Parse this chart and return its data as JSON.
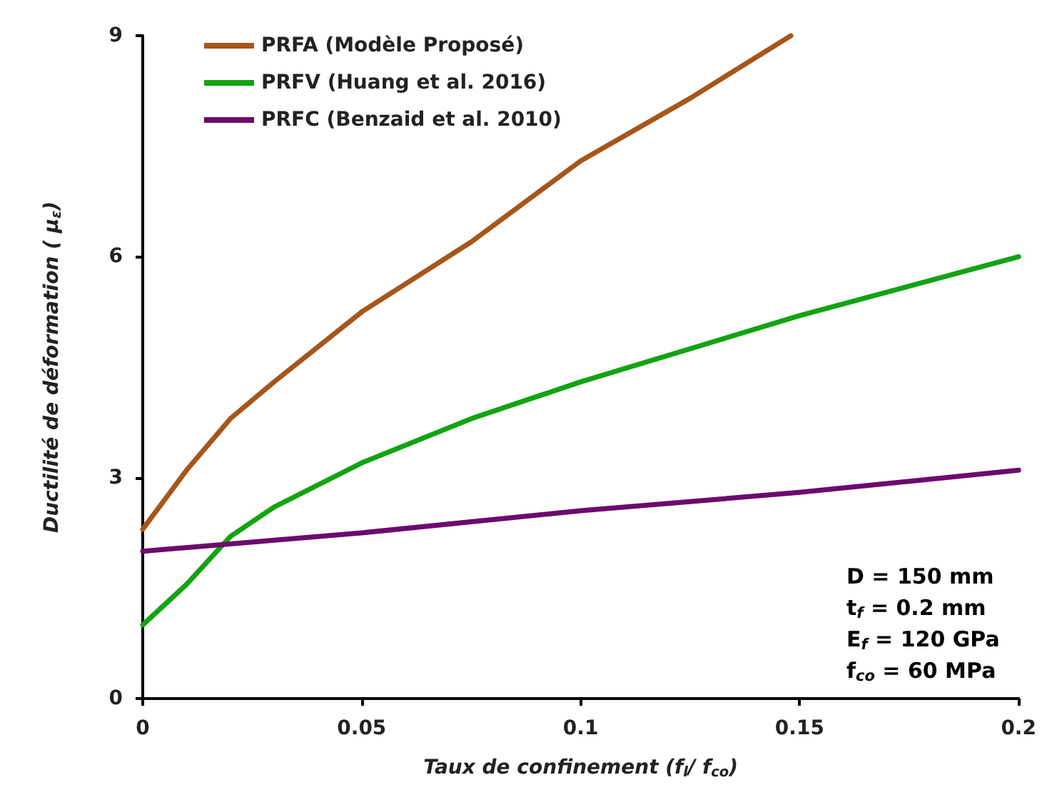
{
  "chart_data": {
    "type": "line",
    "xlabel": "Taux de confinement (f$_{l}$/ f$_{co}$)",
    "ylabel": "Ductilité de déformation ( μ$_{ε}$)",
    "xlim": [
      0,
      0.2
    ],
    "xticks": [
      0,
      0.05,
      0.1,
      0.15,
      0.2
    ],
    "ylim": [
      0,
      9
    ],
    "yticks": [
      0,
      3,
      6,
      9
    ],
    "grid": false,
    "legend": "top left",
    "marker": "none",
    "line_style": "solid",
    "series": [
      {
        "name": "PRFA (Modèle Proposé)",
        "color": "#a5561b",
        "x": [
          0,
          0.01,
          0.02,
          0.03,
          0.05,
          0.075,
          0.1,
          0.125,
          0.148
        ],
        "values": [
          2.3,
          3.1,
          3.8,
          4.3,
          5.25,
          6.2,
          7.3,
          8.15,
          9
        ]
      },
      {
        "name": "PRFV (Huang et al. 2016)",
        "color": "#12a312",
        "x": [
          0,
          0.01,
          0.02,
          0.03,
          0.05,
          0.075,
          0.1,
          0.15,
          0.2
        ],
        "values": [
          1.0,
          1.55,
          2.2,
          2.6,
          3.2,
          3.8,
          4.3,
          5.2,
          6.0
        ]
      },
      {
        "name": "PRFC (Benzaid et al. 2010)",
        "color": "#6c0a6c",
        "x": [
          0,
          0.05,
          0.1,
          0.15,
          0.2
        ],
        "values": [
          2.0,
          2.25,
          2.55,
          2.8,
          3.1
        ]
      }
    ],
    "annotations": [
      "D = 150 mm",
      "t$_{f}$ = 0.2 mm",
      "E$_{f}$ = 120 GPa",
      "f$_{co}$ = 60 MPa"
    ]
  }
}
